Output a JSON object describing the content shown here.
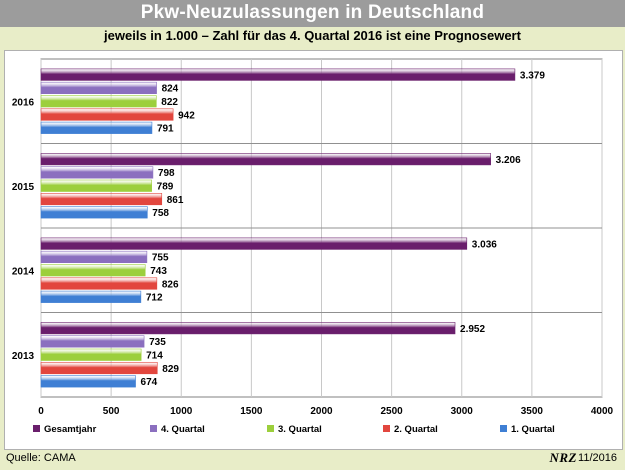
{
  "header": {
    "title": "Pkw-Neuzulassungen in Deutschland",
    "subtitle": "jeweils in 1.000 – Zahl für das 4. Quartal 2016 ist eine Prognosewert"
  },
  "footer": {
    "source": "Quelle: CAMA",
    "logo": "NRZ",
    "date": "11/2016"
  },
  "chart_data": {
    "type": "bar",
    "orientation": "horizontal",
    "categories": [
      "2016",
      "2015",
      "2014",
      "2013"
    ],
    "series": [
      {
        "name": "Gesamtjahr",
        "color": "#6a1e6c",
        "values": [
          3379,
          3206,
          3036,
          2952
        ],
        "labels": [
          "3.379",
          "3.206",
          "3.036",
          "2.952"
        ]
      },
      {
        "name": "4. Quartal",
        "color": "#8b6fbf",
        "values": [
          824,
          798,
          755,
          735
        ],
        "labels": [
          "824",
          "798",
          "755",
          "735"
        ]
      },
      {
        "name": "3. Quartal",
        "color": "#9ccf3c",
        "values": [
          822,
          789,
          743,
          714
        ],
        "labels": [
          "822",
          "789",
          "743",
          "714"
        ]
      },
      {
        "name": "2. Quartal",
        "color": "#e2463e",
        "values": [
          942,
          861,
          826,
          829
        ],
        "labels": [
          "942",
          "861",
          "826",
          "829"
        ]
      },
      {
        "name": "1. Quartal",
        "color": "#3f7fd4",
        "values": [
          791,
          758,
          712,
          674
        ],
        "labels": [
          "791",
          "758",
          "712",
          "674"
        ]
      }
    ],
    "xlim": [
      0,
      4000
    ],
    "xticks": [
      0,
      500,
      1000,
      1500,
      2000,
      2500,
      3000,
      3500,
      4000
    ],
    "grid": true,
    "legend_position": "bottom"
  }
}
